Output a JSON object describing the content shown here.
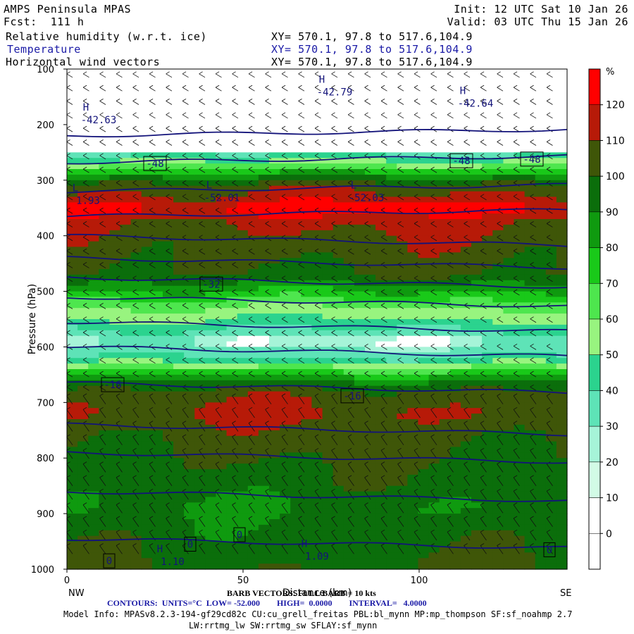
{
  "header": {
    "model": "AMPS Peninsula MPAS",
    "fcst": "Fcst:  111 h",
    "init": "Init: 12 UTC Sat 10 Jan 26",
    "valid": "Valid: 03 UTC Thu 15 Jan 26",
    "fields": [
      {
        "name": "Relative humidity (w.r.t. ice)",
        "xy": "XY= 570.1, 97.8 to 517.6,104.9"
      },
      {
        "name": "Temperature",
        "xy": "XY= 570.1, 97.8 to 517.6,104.9"
      },
      {
        "name": "Horizontal wind vectors",
        "xy": "XY= 570.1, 97.8 to 517.6,104.9"
      }
    ]
  },
  "colors": {
    "temperature_contour": "#13137a",
    "rh_scale": [
      "#ffffff",
      "#ffffff",
      "#ffffff",
      "#ffffff",
      "#d2fbe6",
      "#a6f4d8",
      "#5ee3b7",
      "#2bd38e",
      "#98f47f",
      "#4ee64e",
      "#19c919",
      "#0f9a0f",
      "#0b6e0b",
      "#3f5608",
      "#b71a08",
      "#ff0000"
    ]
  },
  "chart_data": {
    "type": "heatmap",
    "xlabel": "Distance (km)",
    "ylabel": "Pressure (hPa)",
    "xlim": [
      0,
      142
    ],
    "ylim": [
      1000,
      100
    ],
    "x_ticks": [
      "0",
      "50",
      "100"
    ],
    "y_ticks": [
      "100",
      "200",
      "300",
      "400",
      "500",
      "600",
      "700",
      "800",
      "900",
      "1000"
    ],
    "left_end": "NW",
    "right_end": "SE",
    "colorbar": {
      "unit": "%",
      "labels": [
        "0",
        "10",
        "20",
        "30",
        "40",
        "50",
        "60",
        "70",
        "80",
        "90",
        "100",
        "110",
        "120"
      ]
    },
    "rh_profile": [
      {
        "p": 100,
        "rh": 0
      },
      {
        "p": 240,
        "rh": 0
      },
      {
        "p": 255,
        "rh": 40
      },
      {
        "p": 270,
        "rh": 55
      },
      {
        "p": 290,
        "rh": 85
      },
      {
        "p": 310,
        "rh": 105
      },
      {
        "p": 330,
        "rh": 112
      },
      {
        "p": 350,
        "rh": 125
      },
      {
        "p": 375,
        "rh": 112
      },
      {
        "p": 420,
        "rh": 105
      },
      {
        "p": 470,
        "rh": 100
      },
      {
        "p": 500,
        "rh": 80
      },
      {
        "p": 530,
        "rh": 60
      },
      {
        "p": 560,
        "rh": 45
      },
      {
        "p": 590,
        "rh": 25
      },
      {
        "p": 620,
        "rh": 40
      },
      {
        "p": 640,
        "rh": 65
      },
      {
        "p": 660,
        "rh": 90
      },
      {
        "p": 685,
        "rh": 105
      },
      {
        "p": 720,
        "rh": 112
      },
      {
        "p": 750,
        "rh": 105
      },
      {
        "p": 800,
        "rh": 100
      },
      {
        "p": 850,
        "rh": 95
      },
      {
        "p": 890,
        "rh": 90
      },
      {
        "p": 930,
        "rh": 95
      },
      {
        "p": 1000,
        "rh": 100
      }
    ],
    "temperature_contour_labels": [
      {
        "x": 25,
        "p": 270,
        "value": "-48"
      },
      {
        "x": 112,
        "p": 265,
        "value": "-48"
      },
      {
        "x": 132,
        "p": 262,
        "value": "-48"
      },
      {
        "x": 41,
        "p": 487,
        "value": "-32"
      },
      {
        "x": 13,
        "p": 668,
        "value": "-16"
      },
      {
        "x": 81,
        "p": 688,
        "value": "-16"
      },
      {
        "x": 49,
        "p": 938,
        "value": "0"
      },
      {
        "x": 35,
        "p": 955,
        "value": "0"
      },
      {
        "x": 12,
        "p": 985,
        "value": "0"
      },
      {
        "x": 137,
        "p": 965,
        "value": "0"
      }
    ],
    "extrema": [
      {
        "kind": "H",
        "x": 3,
        "p": 190,
        "value": "-42.63"
      },
      {
        "kind": "H",
        "x": 70,
        "p": 140,
        "value": "-42.79"
      },
      {
        "kind": "H",
        "x": 110,
        "p": 160,
        "value": "-42.64"
      },
      {
        "kind": "L",
        "x": 38,
        "p": 330,
        "value": "-52.01"
      },
      {
        "kind": "L",
        "x": 79,
        "p": 330,
        "value": "-52.03"
      },
      {
        "kind": "L",
        "x": 0,
        "p": 335,
        "value": "1.93"
      },
      {
        "kind": "H",
        "x": 24,
        "p": 985,
        "value": "1.10"
      },
      {
        "kind": "H",
        "x": 65,
        "p": 975,
        "value": "1.09"
      }
    ],
    "isotherm_pressures": [
      220,
      268,
      320,
      365,
      400,
      440,
      475,
      510,
      555,
      600,
      665,
      740,
      790,
      860,
      945
    ]
  },
  "footer": {
    "barb_legend": "BARB VECTORS: FULL BARB = 10 kts",
    "contours": "CONTOURS:  UNITS=°C  LOW= -52.000        HIGH=  0.0000        INTERVAL=   4.0000",
    "model_info_1": "Model Info: MPASv8.2.3-194-gf29cd82c CU:cu_grell_freitas PBL:bl_mynn MP:mp_thompson SF:sf_noahmp 2.7",
    "model_info_2": "LW:rrtmg_lw SW:rrtmg_sw SFLAY:sf_mynn"
  }
}
